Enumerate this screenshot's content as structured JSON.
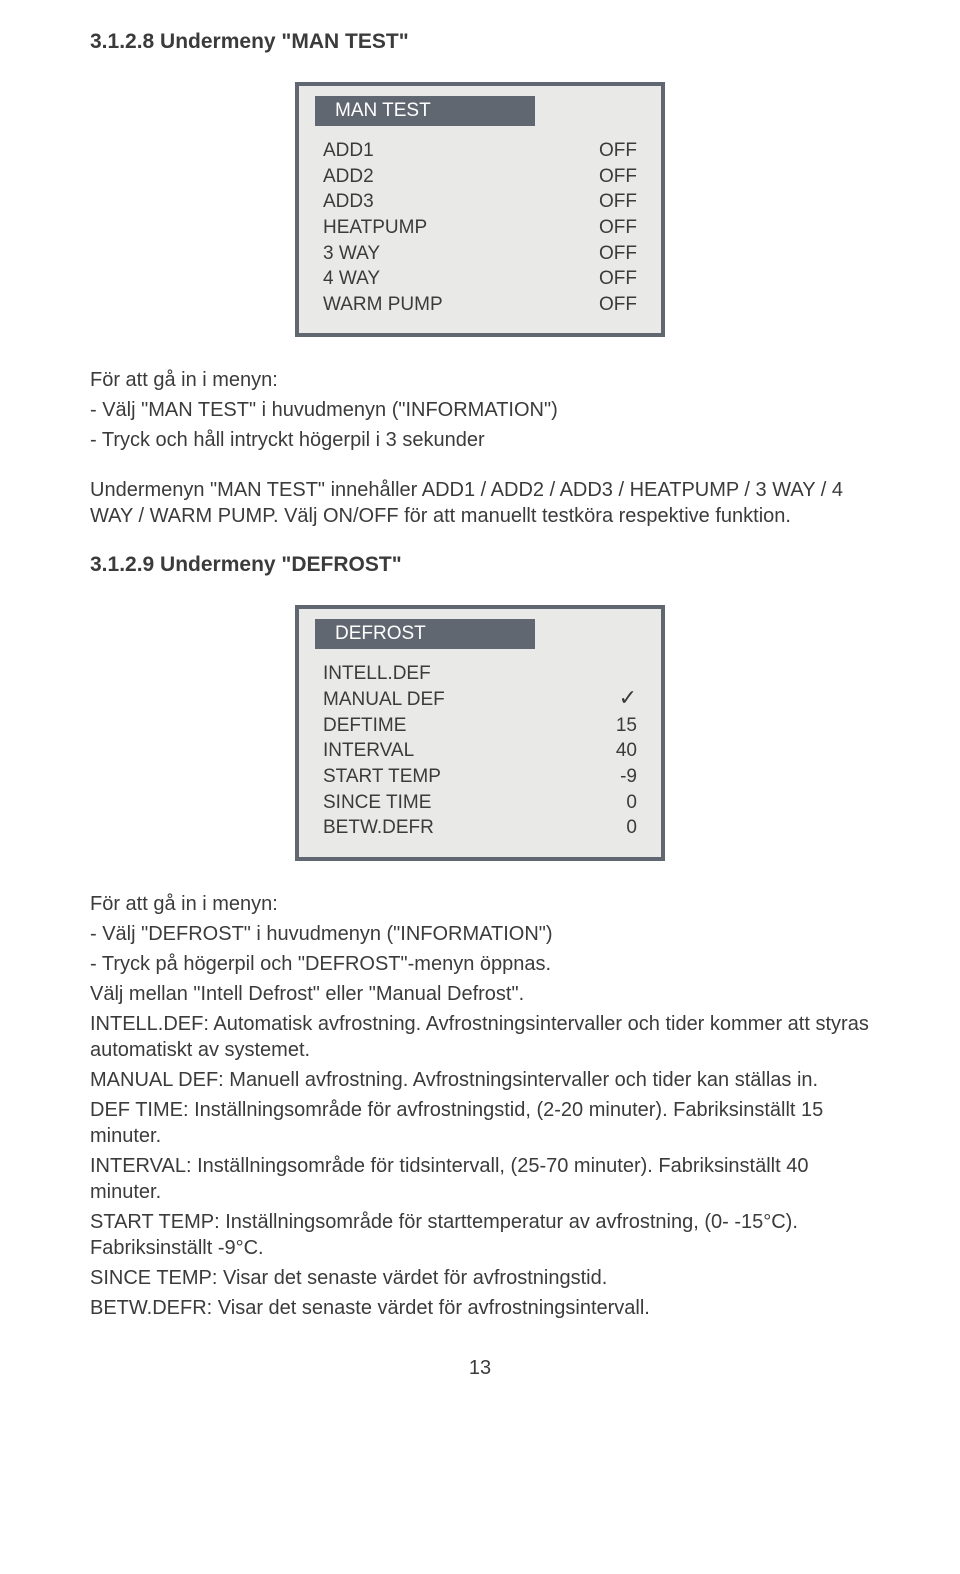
{
  "section1": {
    "heading": "3.1.2.8 Undermeny \"MAN TEST\"",
    "panel": {
      "title": "MAN TEST",
      "bg_color": "#e9eae8",
      "border_color": "#606771",
      "title_bg": "#606771",
      "title_fg": "#ffffff",
      "text_color": "#3b3b3b",
      "font_size": 19,
      "rows": [
        {
          "label": "ADD1",
          "value": "OFF"
        },
        {
          "label": "ADD2",
          "value": "OFF"
        },
        {
          "label": "ADD3",
          "value": "OFF"
        },
        {
          "label": "HEATPUMP",
          "value": "OFF"
        },
        {
          "label": "3 WAY",
          "value": "OFF"
        },
        {
          "label": "4 WAY",
          "value": "OFF"
        },
        {
          "label": "WARM PUMP",
          "value": "OFF"
        }
      ]
    },
    "body": [
      "För att gå in i menyn:",
      "- Välj \"MAN TEST\" i huvudmenyn (\"INFORMATION\")",
      "- Tryck och håll intryckt högerpil i 3 sekunder"
    ],
    "body2": "Undermenyn \"MAN TEST\" innehåller ADD1 / ADD2 / ADD3 / HEATPUMP / 3 WAY / 4 WAY / WARM PUMP. Välj ON/OFF för att manuellt testköra respektive funktion."
  },
  "section2": {
    "heading": "3.1.2.9 Undermeny \"DEFROST\"",
    "panel": {
      "title": "DEFROST",
      "bg_color": "#e9eae8",
      "border_color": "#606771",
      "title_bg": "#606771",
      "title_fg": "#ffffff",
      "text_color": "#3b3b3b",
      "font_size": 19,
      "rows": [
        {
          "label": "INTELL.DEF",
          "value": ""
        },
        {
          "label": "MANUAL DEF",
          "value": "__CHECK__"
        },
        {
          "label": "DEFTIME",
          "value": "15"
        },
        {
          "label": "INTERVAL",
          "value": "40"
        },
        {
          "label": "START TEMP",
          "value": "-9"
        },
        {
          "label": "SINCE TIME",
          "value": "0"
        },
        {
          "label": "BETW.DEFR",
          "value": "0"
        }
      ]
    },
    "body": [
      "För att gå in i menyn:",
      "- Välj \"DEFROST\" i huvudmenyn (\"INFORMATION\")",
      "- Tryck på högerpil och \"DEFROST\"-menyn öppnas.",
      "Välj mellan \"Intell Defrost\" eller \"Manual Defrost\".",
      "INTELL.DEF: Automatisk avfrostning. Avfrostningsintervaller och tider kommer att styras automatiskt av systemet.",
      "MANUAL DEF: Manuell avfrostning. Avfrostningsintervaller och tider kan ställas in.",
      "DEF TIME: Inställningsområde för avfrostningstid, (2-20 minuter). Fabriksinställt 15 minuter.",
      "INTERVAL: Inställningsområde för tidsintervall, (25-70 minuter). Fabriksinställt 40 minuter.",
      "START TEMP: Inställningsområde för starttemperatur av avfrostning, (0- -15°C). Fabriksinställt -9°C.",
      "SINCE TEMP: Visar det senaste värdet för avfrostningstid.",
      "BETW.DEFR: Visar det senaste värdet för avfrostningsintervall."
    ]
  },
  "page_number": "13",
  "check_glyph": "✓"
}
